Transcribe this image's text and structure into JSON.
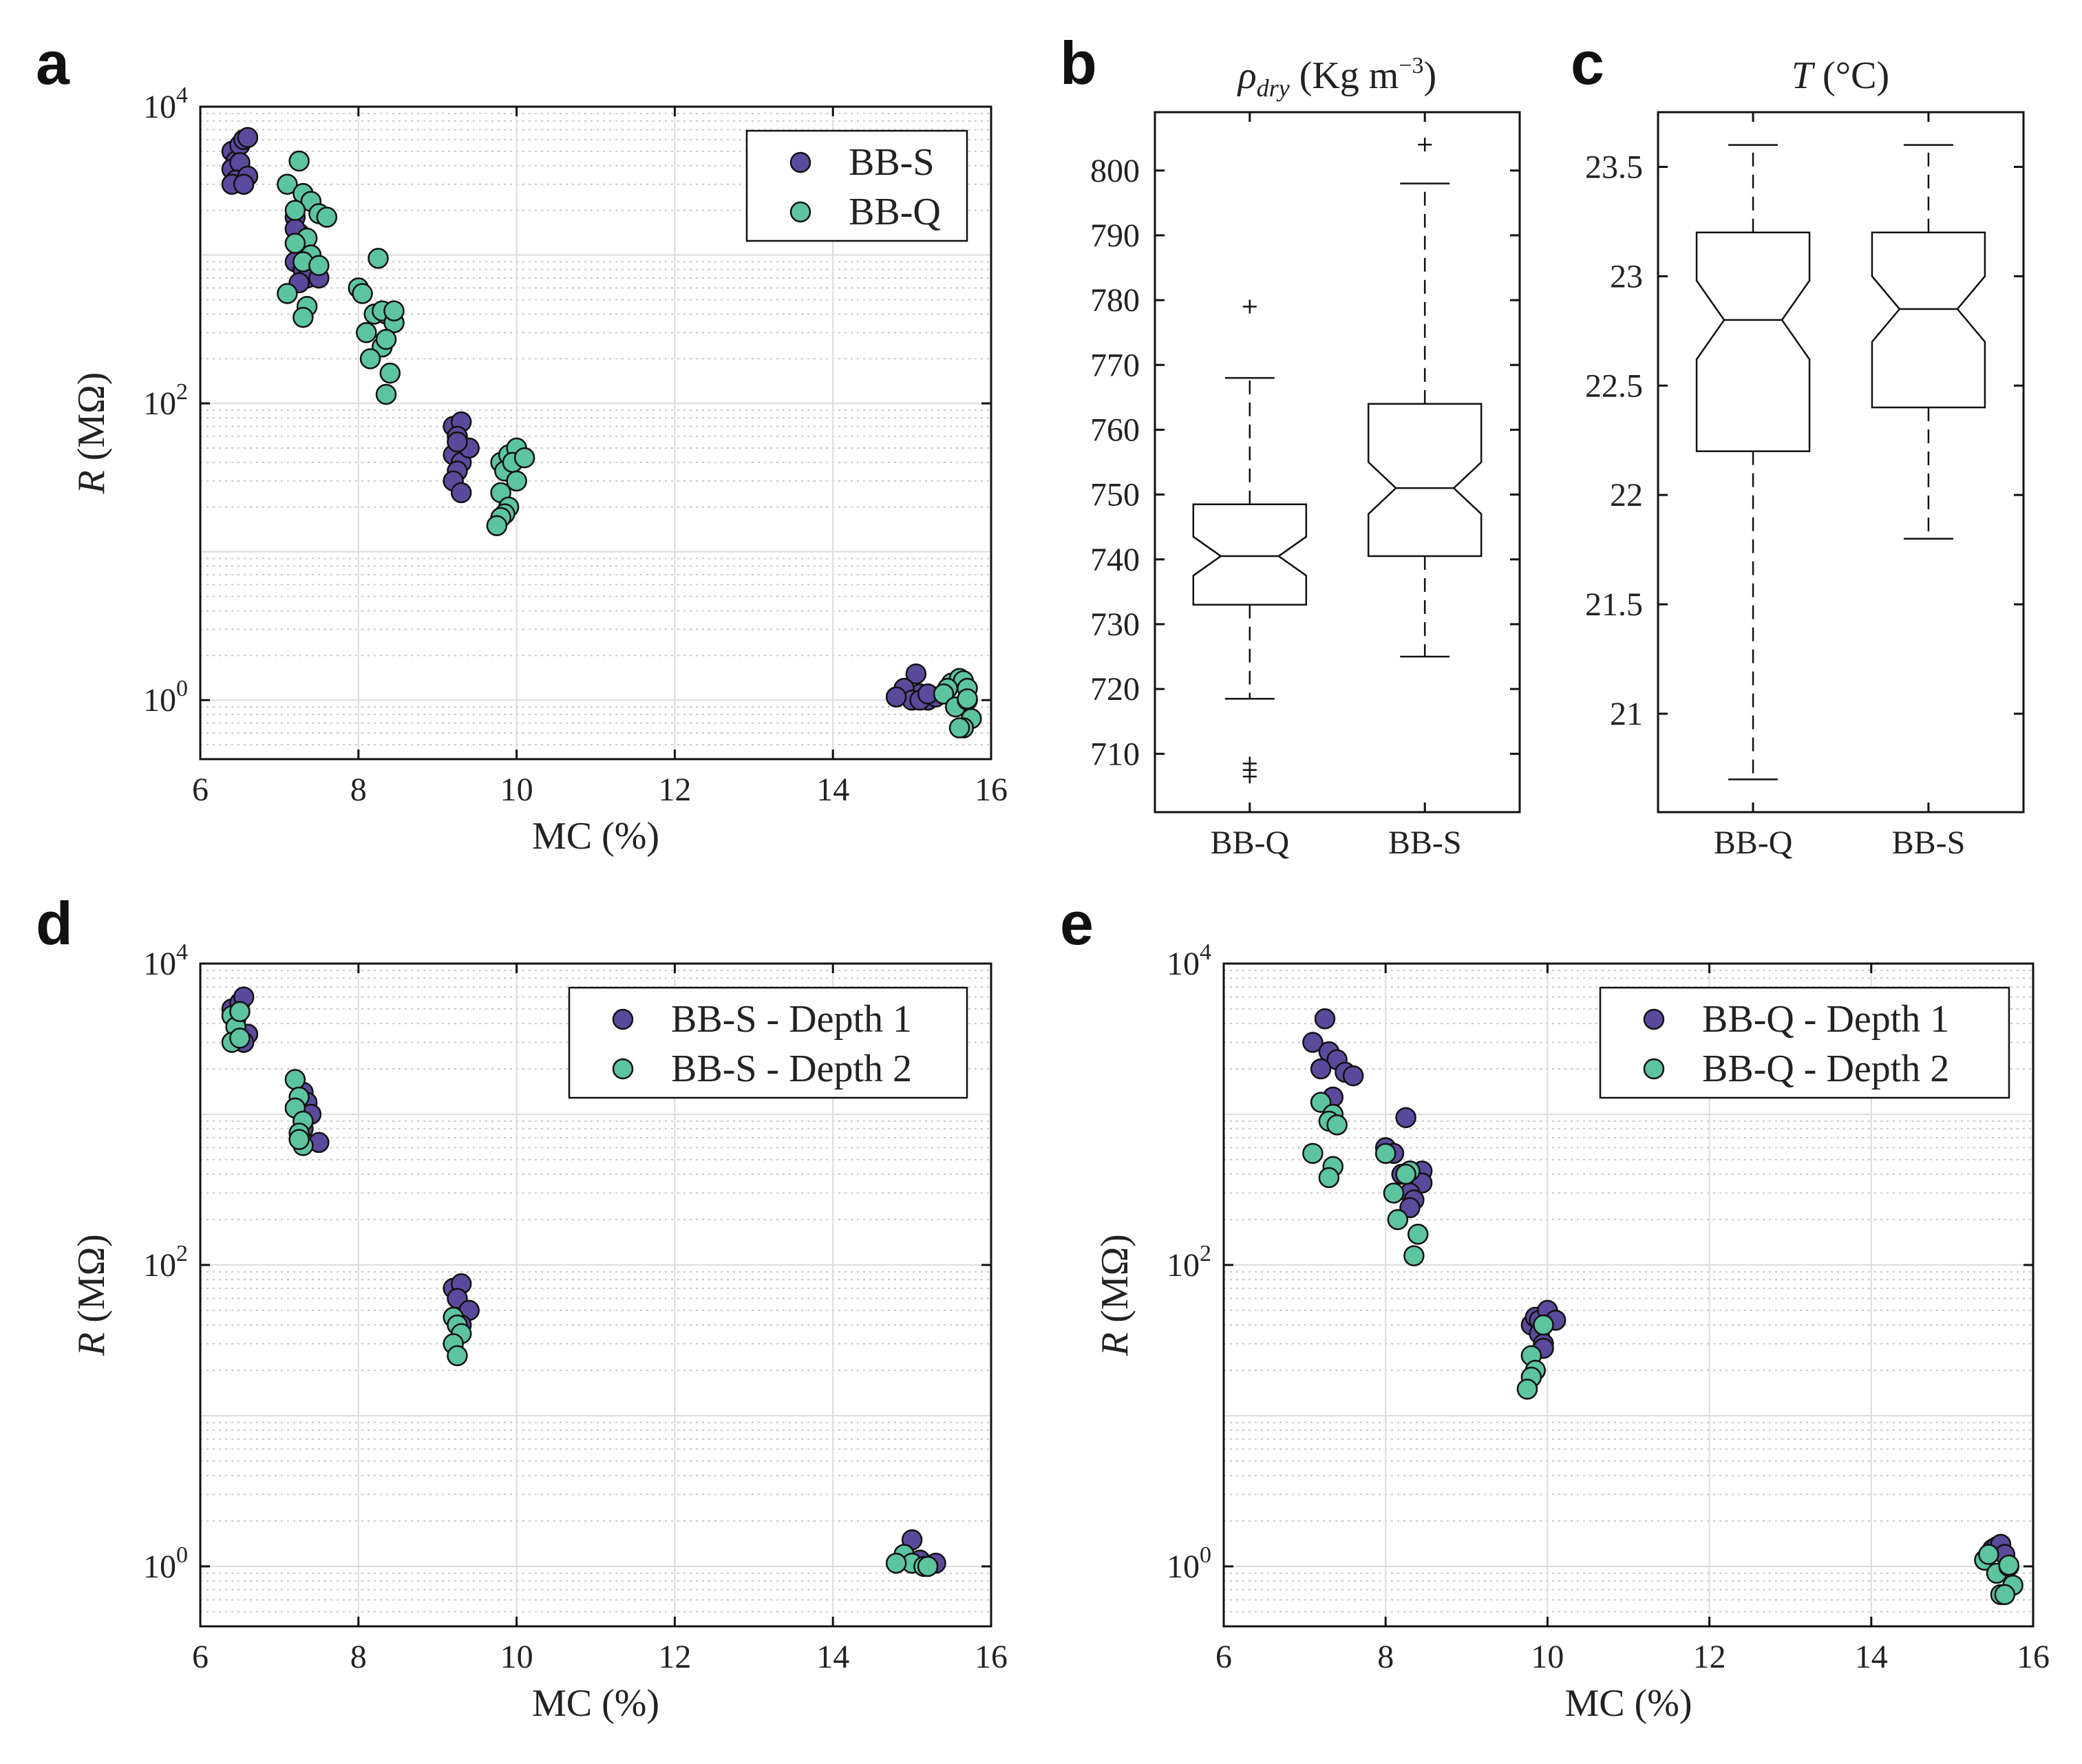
{
  "figure": {
    "panel_letters": [
      "a",
      "b",
      "c",
      "d",
      "e"
    ]
  },
  "colors": {
    "purple": "#5b4a9b",
    "green": "#5dc4a0",
    "axis": "#111111",
    "grid": "#dcdcdc",
    "minorgrid": "#c8c8c8"
  },
  "chart_data": [
    {
      "id": "a",
      "type": "scatter",
      "xlabel": "MC (%)",
      "ylabel": "R (MΩ)",
      "yscale": "log",
      "xlim": [
        6,
        16
      ],
      "ylim": [
        0.4,
        10000
      ],
      "xticks": [
        "6",
        "8",
        "10",
        "12",
        "14",
        "16"
      ],
      "yticks": [
        {
          "label": "10",
          "sup": "0",
          "value": 1
        },
        {
          "label": "10",
          "sup": "2",
          "value": 100
        },
        {
          "label": "10",
          "sup": "4",
          "value": 10000
        }
      ],
      "series": [
        {
          "name": "BB-S",
          "color": "#5b4a9b",
          "points": [
            [
              6.4,
              5000
            ],
            [
              6.45,
              4300
            ],
            [
              6.5,
              5500
            ],
            [
              6.55,
              6000
            ],
            [
              6.4,
              3800
            ],
            [
              6.5,
              4200
            ],
            [
              6.45,
              3200
            ],
            [
              6.6,
              3400
            ],
            [
              6.4,
              3000
            ],
            [
              6.55,
              3000
            ],
            [
              6.6,
              6200
            ],
            [
              7.2,
              1800
            ],
            [
              7.25,
              1400
            ],
            [
              7.3,
              1100
            ],
            [
              7.2,
              900
            ],
            [
              7.3,
              800
            ],
            [
              7.35,
              700
            ],
            [
              7.25,
              650
            ],
            [
              7.5,
              700
            ],
            [
              7.4,
              1000
            ],
            [
              7.2,
              1500
            ],
            [
              7.3,
              1200
            ],
            [
              9.2,
              70
            ],
            [
              9.3,
              75
            ],
            [
              9.25,
              60
            ],
            [
              9.2,
              45
            ],
            [
              9.3,
              40
            ],
            [
              9.25,
              35
            ],
            [
              9.4,
              50
            ],
            [
              9.2,
              30
            ],
            [
              9.3,
              25
            ],
            [
              9.25,
              55
            ],
            [
              15.0,
              1.05
            ],
            [
              15.1,
              1.1
            ],
            [
              15.05,
              1.5
            ],
            [
              14.9,
              1.2
            ],
            [
              15.2,
              1.0
            ],
            [
              15.0,
              1.0
            ],
            [
              15.3,
              1.05
            ],
            [
              15.1,
              1.0
            ],
            [
              14.8,
              1.05
            ],
            [
              15.2,
              1.1
            ]
          ]
        },
        {
          "name": "BB-Q",
          "color": "#5dc4a0",
          "points": [
            [
              7.1,
              3000
            ],
            [
              7.3,
              2600
            ],
            [
              7.4,
              2300
            ],
            [
              7.25,
              4300
            ],
            [
              7.2,
              2000
            ],
            [
              7.5,
              1900
            ],
            [
              7.6,
              1800
            ],
            [
              7.35,
              1300
            ],
            [
              7.4,
              1000
            ],
            [
              7.3,
              900
            ],
            [
              7.5,
              850
            ],
            [
              7.2,
              1200
            ],
            [
              7.1,
              550
            ],
            [
              7.35,
              450
            ],
            [
              7.3,
              380
            ],
            [
              8.0,
              600
            ],
            [
              8.25,
              950
            ],
            [
              8.05,
              550
            ],
            [
              8.2,
              400
            ],
            [
              8.35,
              400
            ],
            [
              8.3,
              420
            ],
            [
              8.45,
              350
            ],
            [
              8.45,
              420
            ],
            [
              8.1,
              300
            ],
            [
              8.3,
              240
            ],
            [
              8.35,
              270
            ],
            [
              8.15,
              200
            ],
            [
              8.4,
              160
            ],
            [
              8.35,
              115
            ],
            [
              9.8,
              40
            ],
            [
              9.9,
              45
            ],
            [
              10.0,
              50
            ],
            [
              9.85,
              35
            ],
            [
              9.95,
              40
            ],
            [
              10.1,
              43
            ],
            [
              10.0,
              30
            ],
            [
              9.8,
              25
            ],
            [
              9.9,
              20
            ],
            [
              9.85,
              18
            ],
            [
              9.8,
              17
            ],
            [
              9.75,
              15
            ],
            [
              15.5,
              1.3
            ],
            [
              15.6,
              1.4
            ],
            [
              15.65,
              1.35
            ],
            [
              15.7,
              1.2
            ],
            [
              15.45,
              1.2
            ],
            [
              15.4,
              1.1
            ],
            [
              15.55,
              0.9
            ],
            [
              15.7,
              1.0
            ],
            [
              15.75,
              0.75
            ],
            [
              15.65,
              0.65
            ],
            [
              15.6,
              0.65
            ],
            [
              15.7,
              1.02
            ]
          ]
        }
      ]
    },
    {
      "id": "b",
      "type": "box",
      "title_main": "ρ",
      "title_sub": "dry",
      "title_rest": " (Kg m",
      "title_sup": "−3",
      "title_end": ")",
      "ylim": [
        701,
        809
      ],
      "yticks": [
        "710",
        "720",
        "730",
        "740",
        "750",
        "760",
        "770",
        "780",
        "790",
        "800"
      ],
      "categories": [
        "BB-Q",
        "BB-S"
      ],
      "boxes": [
        {
          "q1": 733,
          "median": 740.5,
          "q3": 748.5,
          "notch_lo": 737.5,
          "notch_hi": 743.5,
          "whisker_lo": 718.5,
          "whisker_hi": 768,
          "outliers": [
            779,
            708.5,
            707.5,
            706.5
          ]
        },
        {
          "q1": 740.5,
          "median": 751,
          "q3": 764,
          "notch_lo": 747,
          "notch_hi": 755,
          "whisker_lo": 725,
          "whisker_hi": 798,
          "outliers": [
            804
          ]
        }
      ]
    },
    {
      "id": "c",
      "type": "box",
      "title_main": "T",
      "title_rest": " (°C)",
      "ylim": [
        20.55,
        23.75
      ],
      "yticks": [
        "21",
        "21.5",
        "22",
        "22.5",
        "23",
        "23.5"
      ],
      "categories": [
        "BB-Q",
        "BB-S"
      ],
      "boxes": [
        {
          "q1": 22.2,
          "median": 22.8,
          "q3": 23.2,
          "notch_lo": 22.62,
          "notch_hi": 22.98,
          "whisker_lo": 20.7,
          "whisker_hi": 23.6,
          "outliers": []
        },
        {
          "q1": 22.4,
          "median": 22.85,
          "q3": 23.2,
          "notch_lo": 22.7,
          "notch_hi": 23.0,
          "whisker_lo": 21.8,
          "whisker_hi": 23.6,
          "outliers": []
        }
      ]
    },
    {
      "id": "d",
      "type": "scatter",
      "xlabel": "MC (%)",
      "ylabel": "R (MΩ)",
      "yscale": "log",
      "xlim": [
        6,
        16
      ],
      "ylim": [
        0.4,
        10000
      ],
      "xticks": [
        "6",
        "8",
        "10",
        "12",
        "14",
        "16"
      ],
      "yticks": [
        {
          "label": "10",
          "sup": "0",
          "value": 1
        },
        {
          "label": "10",
          "sup": "2",
          "value": 100
        },
        {
          "label": "10",
          "sup": "4",
          "value": 10000
        }
      ],
      "series": [
        {
          "name": "BB-S - Depth 1",
          "color": "#5b4a9b",
          "points": [
            [
              6.4,
              5000
            ],
            [
              6.5,
              5500
            ],
            [
              6.55,
              6000
            ],
            [
              6.45,
              4300
            ],
            [
              6.6,
              3400
            ],
            [
              6.55,
              3000
            ],
            [
              7.3,
              1400
            ],
            [
              7.35,
              1200
            ],
            [
              7.4,
              1000
            ],
            [
              7.5,
              650
            ],
            [
              7.3,
              800
            ],
            [
              9.2,
              70
            ],
            [
              9.3,
              75
            ],
            [
              9.25,
              60
            ],
            [
              9.4,
              50
            ],
            [
              9.3,
              40
            ],
            [
              15.0,
              1.5
            ],
            [
              15.1,
              1.1
            ],
            [
              15.3,
              1.05
            ],
            [
              15.2,
              1.0
            ]
          ]
        },
        {
          "name": "BB-S - Depth 2",
          "color": "#5dc4a0",
          "points": [
            [
              6.4,
              4500
            ],
            [
              6.45,
              3800
            ],
            [
              6.5,
              4800
            ],
            [
              6.4,
              3000
            ],
            [
              6.5,
              3200
            ],
            [
              7.2,
              1700
            ],
            [
              7.25,
              1300
            ],
            [
              7.2,
              1100
            ],
            [
              7.3,
              900
            ],
            [
              7.25,
              750
            ],
            [
              7.3,
              620
            ],
            [
              7.25,
              680
            ],
            [
              9.2,
              45
            ],
            [
              9.25,
              40
            ],
            [
              9.3,
              35
            ],
            [
              9.2,
              30
            ],
            [
              9.25,
              25
            ],
            [
              14.9,
              1.2
            ],
            [
              15.0,
              1.05
            ],
            [
              14.8,
              1.05
            ],
            [
              15.15,
              1.0
            ],
            [
              15.2,
              1.0
            ]
          ]
        }
      ]
    },
    {
      "id": "e",
      "type": "scatter",
      "xlabel": "MC (%)",
      "ylabel": "R (MΩ)",
      "yscale": "log",
      "xlim": [
        6,
        16
      ],
      "ylim": [
        0.4,
        10000
      ],
      "xticks": [
        "6",
        "8",
        "10",
        "12",
        "14",
        "16"
      ],
      "yticks": [
        {
          "label": "10",
          "sup": "0",
          "value": 1
        },
        {
          "label": "10",
          "sup": "2",
          "value": 100
        },
        {
          "label": "10",
          "sup": "4",
          "value": 10000
        }
      ],
      "series": [
        {
          "name": "BB-Q - Depth 1",
          "color": "#5b4a9b",
          "points": [
            [
              7.25,
              4300
            ],
            [
              7.1,
              3000
            ],
            [
              7.3,
              2600
            ],
            [
              7.4,
              2300
            ],
            [
              7.2,
              2000
            ],
            [
              7.5,
              1900
            ],
            [
              7.6,
              1800
            ],
            [
              7.35,
              1300
            ],
            [
              8.25,
              950
            ],
            [
              8.0,
              600
            ],
            [
              8.1,
              550
            ],
            [
              8.3,
              420
            ],
            [
              8.45,
              420
            ],
            [
              8.2,
              400
            ],
            [
              8.45,
              350
            ],
            [
              8.3,
              300
            ],
            [
              8.35,
              270
            ],
            [
              8.3,
              240
            ],
            [
              9.8,
              40
            ],
            [
              9.85,
              45
            ],
            [
              9.9,
              43
            ],
            [
              10.0,
              50
            ],
            [
              10.1,
              43
            ],
            [
              9.9,
              35
            ],
            [
              9.95,
              30
            ],
            [
              9.95,
              28
            ],
            [
              15.5,
              1.3
            ],
            [
              15.55,
              1.35
            ],
            [
              15.6,
              1.4
            ],
            [
              15.65,
              1.2
            ]
          ]
        },
        {
          "name": "BB-Q - Depth 2",
          "color": "#5dc4a0",
          "points": [
            [
              7.2,
              1200
            ],
            [
              7.35,
              1000
            ],
            [
              7.3,
              900
            ],
            [
              7.4,
              850
            ],
            [
              7.1,
              550
            ],
            [
              7.35,
              450
            ],
            [
              7.3,
              380
            ],
            [
              8.0,
              550
            ],
            [
              8.3,
              420
            ],
            [
              8.25,
              400
            ],
            [
              8.1,
              300
            ],
            [
              8.15,
              200
            ],
            [
              8.4,
              160
            ],
            [
              8.35,
              115
            ],
            [
              9.95,
              40
            ],
            [
              9.8,
              25
            ],
            [
              9.85,
              20
            ],
            [
              9.8,
              18
            ],
            [
              9.75,
              15
            ],
            [
              15.4,
              1.1
            ],
            [
              15.45,
              1.2
            ],
            [
              15.55,
              0.9
            ],
            [
              15.7,
              1.0
            ],
            [
              15.75,
              0.75
            ],
            [
              15.6,
              0.65
            ],
            [
              15.65,
              0.65
            ],
            [
              15.7,
              1.02
            ]
          ]
        }
      ]
    }
  ]
}
